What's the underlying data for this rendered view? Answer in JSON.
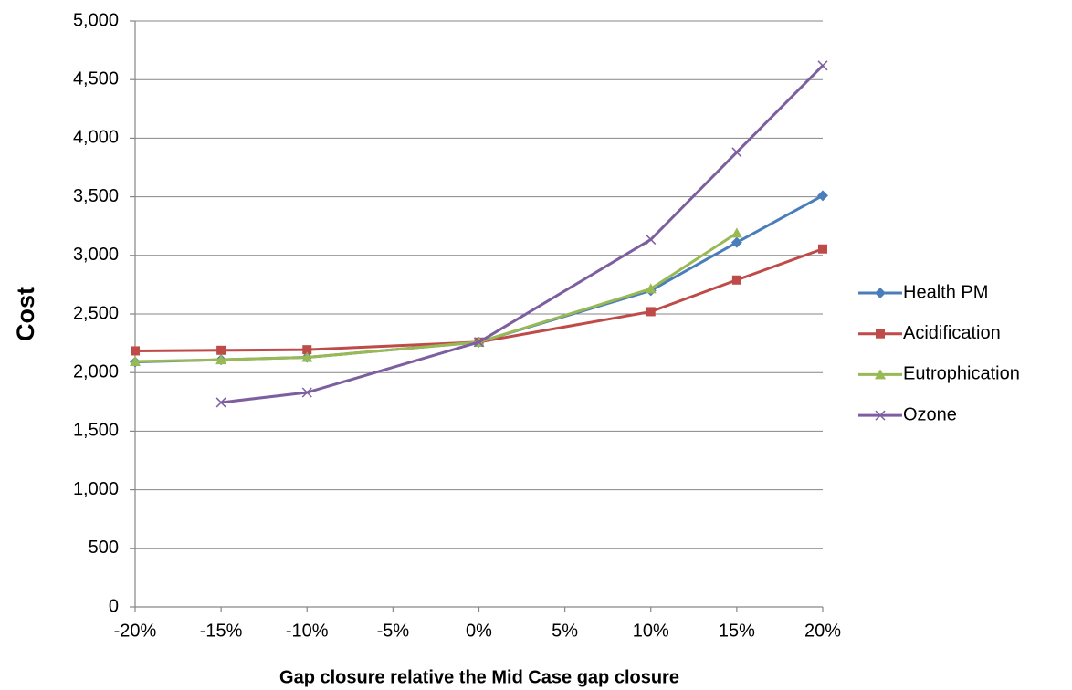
{
  "chart_data": {
    "type": "line",
    "x_label": "Gap closure relative the Mid Case gap closure",
    "y_label": "Cost",
    "x": [
      -20,
      -15,
      -10,
      0,
      10,
      15,
      20
    ],
    "series": [
      {
        "name": "Health PM",
        "color": "#4a7ebb",
        "marker": "diamond",
        "values": [
          2090,
          2110,
          2130,
          2260,
          2700,
          3110,
          3510
        ]
      },
      {
        "name": "Acidification",
        "color": "#be4b48",
        "marker": "square",
        "values": [
          2185,
          2190,
          2195,
          2260,
          2520,
          2790,
          3055
        ]
      },
      {
        "name": "Eutrophication",
        "color": "#98b954",
        "marker": "triangle",
        "values": [
          2095,
          2110,
          2130,
          2260,
          2715,
          3190,
          null
        ]
      },
      {
        "name": "Ozone",
        "color": "#7d5fa0",
        "marker": "x",
        "values": [
          null,
          1745,
          1830,
          2260,
          3135,
          3880,
          4620
        ]
      }
    ],
    "xlim": [
      -20,
      20
    ],
    "xticks": [
      {
        "value": -20,
        "label": "-20%"
      },
      {
        "value": -15,
        "label": "-15%"
      },
      {
        "value": -10,
        "label": "-10%"
      },
      {
        "value": -5,
        "label": "-5%"
      },
      {
        "value": 0,
        "label": "0%"
      },
      {
        "value": 5,
        "label": "5%"
      },
      {
        "value": 10,
        "label": "10%"
      },
      {
        "value": 15,
        "label": "15%"
      },
      {
        "value": 20,
        "label": "20%"
      }
    ],
    "ylim": [
      0,
      5000
    ],
    "yticks": [
      0,
      500,
      {
        "value": 1000,
        "label": "1,000"
      },
      {
        "value": 1500,
        "label": "1,500"
      },
      {
        "value": 2000,
        "label": "2,000"
      },
      {
        "value": 2500,
        "label": "2,500"
      },
      {
        "value": 3000,
        "label": "3,000"
      },
      {
        "value": 3500,
        "label": "3,500"
      },
      {
        "value": 4000,
        "label": "4,000"
      },
      {
        "value": 4500,
        "label": "4,500"
      },
      {
        "value": 5000,
        "label": "5,000"
      }
    ],
    "grid": true,
    "legend": "right"
  }
}
